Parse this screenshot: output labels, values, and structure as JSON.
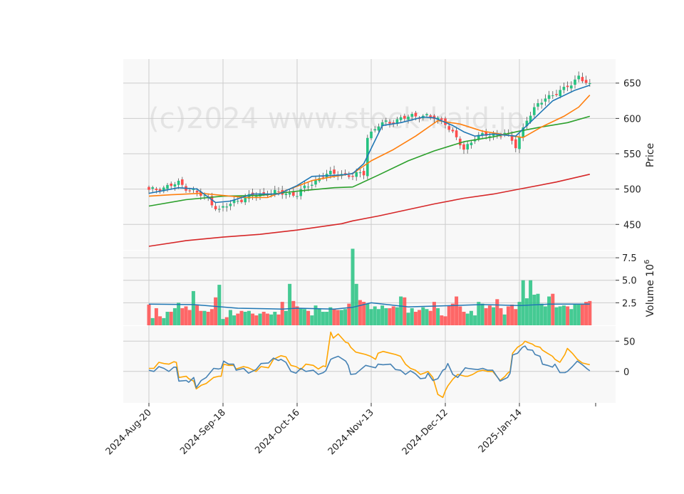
{
  "chart_data": {
    "type": "candlestick",
    "watermark": "(c)2024 www.stock-kaid.jp",
    "colors": {
      "up": "#26c281",
      "down": "#ff4d4d",
      "ma_short": "#1f77b4",
      "ma_mid": "#ff7f0e",
      "ma_long": "#2ca02c",
      "ma_longest": "#d62728",
      "volume_ma": "#1f77b4",
      "osc_fast": "#4682b4",
      "osc_slow": "#ffa500",
      "panel_bg": "#f8f8f8",
      "grid": "#cccccc"
    },
    "date_ticks": [
      "2024-Aug-20",
      "2024-Sep-18",
      "2024-Oct-16",
      "2024-Nov-13",
      "2024-Dec-12",
      "2025-Jan-14"
    ],
    "date_tick_bar_index": [
      0,
      20,
      40,
      60,
      80,
      100
    ],
    "bar_count": 120,
    "price_panel": {
      "ylabel": "Price",
      "yticks": [
        450,
        500,
        550,
        600,
        650
      ],
      "ylim": [
        414,
        684
      ]
    },
    "volume_panel": {
      "ylabel": "Volume  10^6",
      "yticks": [
        "2.5",
        "5.0",
        "7.5"
      ],
      "ytick_values": [
        2.5,
        5.0,
        7.5
      ],
      "ylim": [
        0,
        8.3
      ]
    },
    "oscillator_panel": {
      "yticks": [
        "0",
        "50"
      ],
      "ytick_values": [
        0,
        50
      ],
      "ylim": [
        -52,
        75
      ]
    },
    "close_path": [
      [
        0,
        497
      ],
      [
        8,
        508
      ],
      [
        16,
        486
      ],
      [
        19,
        470
      ],
      [
        24,
        485
      ],
      [
        28,
        490
      ],
      [
        32,
        495
      ],
      [
        40,
        493
      ],
      [
        47,
        520
      ],
      [
        52,
        522
      ],
      [
        55,
        518
      ],
      [
        58,
        523
      ],
      [
        59,
        575
      ],
      [
        62,
        590
      ],
      [
        68,
        600
      ],
      [
        74,
        605
      ],
      [
        80,
        595
      ],
      [
        85,
        555
      ],
      [
        88,
        575
      ],
      [
        93,
        576
      ],
      [
        96,
        580
      ],
      [
        99,
        560
      ],
      [
        102,
        600
      ],
      [
        107,
        630
      ],
      [
        112,
        640
      ],
      [
        116,
        660
      ],
      [
        119,
        645
      ]
    ],
    "ma_short_points": [
      [
        0,
        494
      ],
      [
        8,
        502
      ],
      [
        13,
        500
      ],
      [
        18,
        481
      ],
      [
        22,
        483
      ],
      [
        28,
        493
      ],
      [
        35,
        493
      ],
      [
        40,
        505
      ],
      [
        44,
        518
      ],
      [
        52,
        520
      ],
      [
        55,
        522
      ],
      [
        58,
        536
      ],
      [
        63,
        590
      ],
      [
        68,
        594
      ],
      [
        74,
        602
      ],
      [
        77,
        601
      ],
      [
        82,
        590
      ],
      [
        85,
        581
      ],
      [
        88,
        575
      ],
      [
        93,
        578
      ],
      [
        99,
        575
      ],
      [
        104,
        600
      ],
      [
        109,
        625
      ],
      [
        115,
        640
      ],
      [
        119,
        647
      ]
    ],
    "ma_mid_points": [
      [
        0,
        490
      ],
      [
        6,
        492
      ],
      [
        14,
        494
      ],
      [
        20,
        491
      ],
      [
        26,
        488
      ],
      [
        32,
        488
      ],
      [
        38,
        500
      ],
      [
        44,
        512
      ],
      [
        50,
        518
      ],
      [
        55,
        522
      ],
      [
        60,
        540
      ],
      [
        66,
        556
      ],
      [
        72,
        575
      ],
      [
        78,
        597
      ],
      [
        84,
        592
      ],
      [
        90,
        582
      ],
      [
        97,
        576
      ],
      [
        101,
        573
      ],
      [
        106,
        588
      ],
      [
        112,
        603
      ],
      [
        116,
        616
      ],
      [
        119,
        633
      ]
    ],
    "ma_long_points": [
      [
        0,
        476
      ],
      [
        10,
        485
      ],
      [
        20,
        490
      ],
      [
        30,
        491
      ],
      [
        40,
        497
      ],
      [
        50,
        502
      ],
      [
        55,
        503
      ],
      [
        62,
        520
      ],
      [
        70,
        540
      ],
      [
        77,
        554
      ],
      [
        85,
        567
      ],
      [
        93,
        574
      ],
      [
        100,
        582
      ],
      [
        106,
        588
      ],
      [
        113,
        594
      ],
      [
        119,
        603
      ]
    ],
    "ma_longest_points": [
      [
        0,
        419
      ],
      [
        10,
        427
      ],
      [
        20,
        432
      ],
      [
        30,
        436
      ],
      [
        40,
        442
      ],
      [
        52,
        451
      ],
      [
        55,
        455
      ],
      [
        62,
        462
      ],
      [
        70,
        471
      ],
      [
        77,
        479
      ],
      [
        85,
        487
      ],
      [
        93,
        493
      ],
      [
        100,
        500
      ],
      [
        110,
        510
      ],
      [
        119,
        521
      ]
    ],
    "volume_values": [
      2.3,
      0.8,
      1.9,
      1.0,
      0.8,
      1.5,
      1.5,
      1.9,
      2.5,
      1.9,
      2.1,
      1.7,
      3.8,
      2.3,
      1.6,
      1.6,
      1.5,
      1.8,
      3.1,
      4.5,
      0.7,
      0.9,
      1.7,
      1.1,
      1.3,
      1.6,
      1.5,
      1.6,
      1.3,
      1.1,
      1.3,
      1.5,
      1.3,
      1.2,
      1.5,
      1.2,
      2.6,
      1.6,
      4.6,
      2.7,
      2.1,
      1.9,
      1.8,
      1.6,
      1.1,
      2.2,
      1.9,
      1.5,
      1.5,
      2.0,
      1.8,
      1.7,
      1.7,
      1.8,
      2.4,
      8.5,
      4.6,
      2.8,
      2.6,
      2.4,
      1.8,
      2.1,
      1.8,
      2.2,
      1.9,
      1.9,
      2.1,
      2.0,
      3.2,
      3.1,
      1.4,
      1.9,
      1.5,
      1.7,
      2.0,
      1.8,
      1.6,
      2.6,
      1.9,
      1.1,
      1.0,
      2.2,
      2.4,
      3.2,
      2.1,
      1.5,
      1.3,
      1.6,
      1.1,
      2.6,
      2.4,
      1.9,
      2.2,
      2.0,
      2.9,
      1.9,
      1.2,
      2.1,
      2.3,
      1.8,
      2.6,
      5.0,
      3.0,
      5.0,
      3.4,
      3.5,
      2.4,
      2.1,
      3.2,
      3.5,
      2.0,
      2.1,
      2.2,
      2.1,
      1.8,
      2.3,
      2.3,
      2.4,
      2.6,
      2.7
    ],
    "volume_ma_points": [
      [
        0,
        2.35
      ],
      [
        12,
        2.3
      ],
      [
        24,
        1.9
      ],
      [
        36,
        1.8
      ],
      [
        40,
        1.9
      ],
      [
        50,
        1.8
      ],
      [
        55,
        2.0
      ],
      [
        60,
        2.5
      ],
      [
        70,
        2.05
      ],
      [
        82,
        2.2
      ],
      [
        90,
        2.3
      ],
      [
        100,
        2.2
      ],
      [
        108,
        2.35
      ],
      [
        119,
        2.35
      ]
    ],
    "osc_fast_points": [
      [
        0,
        2
      ],
      [
        2,
        0
      ],
      [
        4,
        8
      ],
      [
        6,
        5
      ],
      [
        8,
        0
      ],
      [
        10,
        7
      ],
      [
        11,
        7
      ],
      [
        12,
        -16
      ],
      [
        15,
        -15
      ],
      [
        16,
        -18
      ],
      [
        18,
        -10
      ],
      [
        19,
        -27
      ],
      [
        21,
        -15
      ],
      [
        23,
        -10
      ],
      [
        26,
        5
      ],
      [
        28,
        4
      ],
      [
        29,
        5
      ],
      [
        30,
        17
      ],
      [
        32,
        12
      ],
      [
        34,
        12
      ],
      [
        35,
        2
      ],
      [
        38,
        5
      ],
      [
        40,
        -3
      ],
      [
        43,
        3
      ],
      [
        45,
        13
      ],
      [
        48,
        14
      ],
      [
        50,
        22
      ],
      [
        52,
        18
      ],
      [
        53,
        20
      ],
      [
        55,
        15
      ],
      [
        57,
        0
      ],
      [
        59,
        -3
      ],
      [
        61,
        5
      ],
      [
        63,
        0
      ],
      [
        66,
        2
      ],
      [
        68,
        -5
      ],
      [
        70,
        -2
      ],
      [
        71,
        1
      ],
      [
        73,
        20
      ],
      [
        74,
        22
      ],
      [
        76,
        25
      ],
      [
        79,
        17
      ],
      [
        80,
        10
      ],
      [
        81,
        -5
      ],
      [
        83,
        -4
      ],
      [
        85,
        3
      ],
      [
        87,
        10
      ],
      [
        89,
        8
      ],
      [
        91,
        6
      ],
      [
        92,
        12
      ],
      [
        94,
        11
      ],
      [
        97,
        12
      ],
      [
        99,
        3
      ],
      [
        101,
        2
      ],
      [
        103,
        -5
      ],
      [
        105,
        1
      ],
      [
        107,
        -4
      ],
      [
        109,
        -12
      ],
      [
        111,
        -11
      ],
      [
        112,
        -3
      ],
      [
        114,
        -15
      ],
      [
        116,
        -12
      ],
      [
        118,
        2
      ],
      [
        119,
        4
      ],
      [
        120,
        13
      ],
      [
        122,
        -5
      ],
      [
        124,
        -10
      ],
      [
        127,
        6
      ],
      [
        128,
        5
      ],
      [
        130,
        4
      ],
      [
        132,
        3
      ],
      [
        134,
        5
      ],
      [
        136,
        2
      ],
      [
        138,
        2
      ],
      [
        141,
        -16
      ],
      [
        143,
        -12
      ],
      [
        144,
        -10
      ],
      [
        145,
        -3
      ],
      [
        146,
        27
      ],
      [
        148,
        30
      ],
      [
        150,
        40
      ],
      [
        151,
        42
      ],
      [
        152,
        36
      ],
      [
        154,
        35
      ],
      [
        155,
        28
      ],
      [
        157,
        25
      ],
      [
        158,
        12
      ],
      [
        160,
        10
      ],
      [
        162,
        7
      ],
      [
        163,
        12
      ],
      [
        165,
        -2
      ],
      [
        167,
        -2
      ],
      [
        168,
        0
      ],
      [
        170,
        8
      ],
      [
        172,
        17
      ],
      [
        174,
        11
      ],
      [
        176,
        4
      ],
      [
        177,
        1
      ]
    ],
    "osc_slow_points": [
      [
        0,
        5
      ],
      [
        2,
        5
      ],
      [
        4,
        15
      ],
      [
        6,
        13
      ],
      [
        8,
        12
      ],
      [
        10,
        16
      ],
      [
        11,
        15
      ],
      [
        12,
        -10
      ],
      [
        15,
        -8
      ],
      [
        16,
        -12
      ],
      [
        18,
        -16
      ],
      [
        19,
        -29
      ],
      [
        21,
        -23
      ],
      [
        23,
        -20
      ],
      [
        26,
        -10
      ],
      [
        28,
        -8
      ],
      [
        29,
        -8
      ],
      [
        30,
        12
      ],
      [
        32,
        10
      ],
      [
        34,
        10
      ],
      [
        35,
        4
      ],
      [
        38,
        8
      ],
      [
        40,
        6
      ],
      [
        43,
        0
      ],
      [
        45,
        8
      ],
      [
        48,
        6
      ],
      [
        50,
        20
      ],
      [
        52,
        24
      ],
      [
        53,
        26
      ],
      [
        55,
        24
      ],
      [
        57,
        10
      ],
      [
        59,
        8
      ],
      [
        61,
        3
      ],
      [
        63,
        12
      ],
      [
        66,
        10
      ],
      [
        68,
        4
      ],
      [
        70,
        9
      ],
      [
        71,
        8
      ],
      [
        73,
        65
      ],
      [
        74,
        55
      ],
      [
        76,
        62
      ],
      [
        79,
        48
      ],
      [
        80,
        47
      ],
      [
        81,
        40
      ],
      [
        83,
        32
      ],
      [
        85,
        30
      ],
      [
        87,
        28
      ],
      [
        89,
        25
      ],
      [
        91,
        20
      ],
      [
        92,
        30
      ],
      [
        94,
        33
      ],
      [
        97,
        30
      ],
      [
        99,
        28
      ],
      [
        101,
        25
      ],
      [
        103,
        12
      ],
      [
        105,
        5
      ],
      [
        107,
        2
      ],
      [
        109,
        -5
      ],
      [
        111,
        -2
      ],
      [
        112,
        0
      ],
      [
        114,
        -10
      ],
      [
        116,
        -38
      ],
      [
        118,
        -43
      ],
      [
        119,
        -32
      ],
      [
        120,
        -24
      ],
      [
        122,
        -13
      ],
      [
        124,
        -5
      ],
      [
        127,
        -8
      ],
      [
        128,
        -8
      ],
      [
        130,
        -5
      ],
      [
        132,
        0
      ],
      [
        134,
        2
      ],
      [
        136,
        0
      ],
      [
        138,
        0
      ],
      [
        141,
        -15
      ],
      [
        143,
        -8
      ],
      [
        144,
        -3
      ],
      [
        145,
        0
      ],
      [
        146,
        30
      ],
      [
        148,
        40
      ],
      [
        150,
        45
      ],
      [
        151,
        50
      ],
      [
        152,
        48
      ],
      [
        154,
        45
      ],
      [
        155,
        42
      ],
      [
        157,
        40
      ],
      [
        158,
        35
      ],
      [
        160,
        30
      ],
      [
        162,
        25
      ],
      [
        163,
        20
      ],
      [
        165,
        15
      ],
      [
        167,
        28
      ],
      [
        168,
        38
      ],
      [
        170,
        30
      ],
      [
        172,
        20
      ],
      [
        174,
        14
      ],
      [
        176,
        12
      ],
      [
        177,
        11
      ]
    ]
  }
}
